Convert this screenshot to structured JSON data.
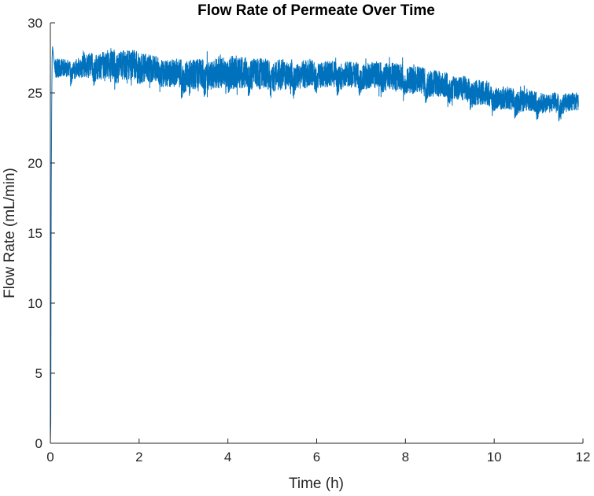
{
  "chart_data": {
    "type": "line",
    "title": "Flow Rate of Permeate Over Time",
    "xlabel": "Time (h)",
    "ylabel": "Flow Rate (mL/min)",
    "xlim": [
      0,
      12
    ],
    "ylim": [
      0,
      30
    ],
    "xticks": [
      0,
      2,
      4,
      6,
      8,
      10,
      12
    ],
    "yticks": [
      0,
      5,
      10,
      15,
      20,
      25,
      30
    ],
    "grid": false,
    "series_color": "#0072BD",
    "startup": {
      "x": [
        0.0,
        0.01,
        0.02,
        0.03,
        0.04,
        0.05
      ],
      "y": [
        0.0,
        1.5,
        17.8,
        23.9,
        27.5,
        28.3
      ]
    },
    "envelope": {
      "x": [
        0.1,
        0.5,
        1.0,
        1.5,
        2.0,
        2.5,
        3.0,
        3.5,
        4.0,
        4.5,
        5.0,
        5.5,
        6.0,
        6.5,
        7.0,
        7.5,
        8.0,
        8.5,
        9.0,
        9.5,
        10.0,
        10.5,
        11.0,
        11.5,
        11.9
      ],
      "lower": [
        25.8,
        25.9,
        25.6,
        25.5,
        25.4,
        25.2,
        24.7,
        24.8,
        24.8,
        24.8,
        24.7,
        24.8,
        25.0,
        25.0,
        24.9,
        24.9,
        24.7,
        24.5,
        24.2,
        23.9,
        23.6,
        23.4,
        23.3,
        23.4,
        23.5
      ],
      "upper": [
        27.8,
        27.7,
        28.4,
        28.6,
        28.5,
        28.0,
        27.9,
        27.9,
        28.3,
        28.1,
        27.9,
        27.9,
        27.8,
        27.7,
        27.6,
        27.7,
        27.5,
        27.2,
        26.8,
        26.5,
        26.0,
        25.7,
        25.4,
        25.3,
        25.3
      ]
    },
    "cycles": {
      "period_h": 0.5,
      "phase_h": 0.45,
      "dip_depth": 1.3
    }
  }
}
